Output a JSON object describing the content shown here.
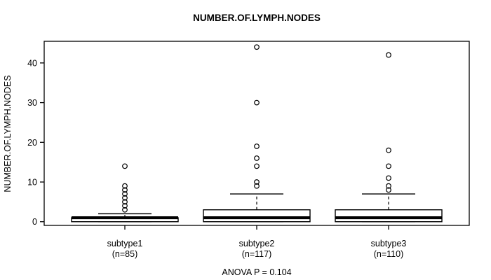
{
  "chart_data": {
    "type": "boxplot",
    "title": "NUMBER.OF.LYMPH.NODES",
    "ylabel": "NUMBER.OF.LYMPH.NODES",
    "xlabel": "",
    "annotation": "ANOVA P = 0.104",
    "ylim": [
      -0.93,
      45.45
    ],
    "yticks": [
      0,
      10,
      20,
      30,
      40
    ],
    "grid": false,
    "legend": "none",
    "groups": [
      {
        "label": "subtype1",
        "sublabel": "(n=85)",
        "n": 85,
        "stats": {
          "whisker_low": 0,
          "q1": 0,
          "median": 1,
          "q3": 1,
          "whisker_high": 2
        },
        "outliers": [
          3,
          4,
          5,
          6,
          7,
          8,
          9,
          14
        ]
      },
      {
        "label": "subtype2",
        "sublabel": "(n=117)",
        "n": 117,
        "stats": {
          "whisker_low": 0,
          "q1": 0,
          "median": 1,
          "q3": 3,
          "whisker_high": 7
        },
        "outliers": [
          9,
          10,
          14,
          16,
          19,
          30,
          44
        ]
      },
      {
        "label": "subtype3",
        "sublabel": "(n=110)",
        "n": 110,
        "stats": {
          "whisker_low": 0,
          "q1": 0,
          "median": 1,
          "q3": 3,
          "whisker_high": 7
        },
        "outliers": [
          8,
          9,
          11,
          14,
          18,
          42
        ]
      }
    ],
    "colors": {
      "stroke": "#000000",
      "box_fill": "#ffffff",
      "background": "#ffffff"
    }
  }
}
